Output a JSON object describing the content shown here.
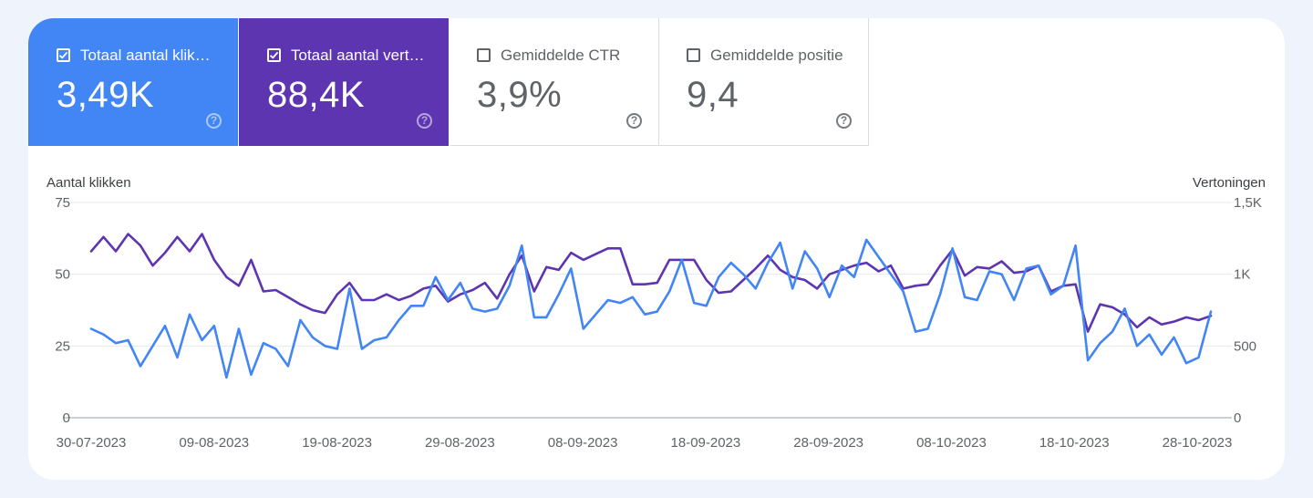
{
  "metrics": {
    "clicks": {
      "label": "Totaal aantal klik…",
      "value": "3,49K",
      "checked": true,
      "color": "#4285f4"
    },
    "impressions": {
      "label": "Totaal aantal vert…",
      "value": "88,4K",
      "checked": true,
      "color": "#5e35b1"
    },
    "ctr": {
      "label": "Gemiddelde CTR",
      "value": "3,9%",
      "checked": false
    },
    "position": {
      "label": "Gemiddelde positie",
      "value": "9,4",
      "checked": false
    }
  },
  "chart_data": {
    "type": "line",
    "left_axis": {
      "title": "Aantal klikken",
      "ticks": [
        "0",
        "25",
        "50",
        "75"
      ],
      "ylim": [
        0,
        75
      ]
    },
    "right_axis": {
      "title": "Vertoningen",
      "ticks": [
        "0",
        "500",
        "1K",
        "1,5K"
      ],
      "ylim": [
        0,
        1500
      ]
    },
    "x_ticks": [
      "30-07-2023",
      "09-08-2023",
      "19-08-2023",
      "29-08-2023",
      "08-09-2023",
      "18-09-2023",
      "28-09-2023",
      "08-10-2023",
      "18-10-2023",
      "28-10-2023"
    ],
    "grid": true,
    "series": [
      {
        "key": "clicks",
        "axis": "left",
        "color": "#4285f4",
        "values": [
          31,
          29,
          26,
          27,
          18,
          25,
          32,
          21,
          36,
          27,
          32,
          14,
          31,
          15,
          26,
          24,
          18,
          34,
          28,
          25,
          24,
          45,
          24,
          27,
          28,
          34,
          39,
          39,
          49,
          41,
          47,
          38,
          37,
          38,
          46,
          60,
          35,
          35,
          43,
          52,
          31,
          36,
          41,
          40,
          42,
          36,
          37,
          44,
          55,
          40,
          39,
          49,
          54,
          50,
          45,
          54,
          61,
          45,
          58,
          52,
          42,
          53,
          49,
          62,
          56,
          50,
          44,
          30,
          31,
          43,
          59,
          42,
          41,
          51,
          50,
          41,
          52,
          53,
          43,
          46,
          60,
          20,
          26,
          30,
          38,
          25,
          29,
          22,
          28,
          19,
          21,
          37
        ]
      },
      {
        "key": "impressions",
        "axis": "right",
        "color": "#5e35b1",
        "values": [
          1160,
          1260,
          1160,
          1280,
          1200,
          1060,
          1150,
          1260,
          1160,
          1280,
          1100,
          980,
          920,
          1100,
          880,
          890,
          840,
          790,
          750,
          730,
          860,
          940,
          820,
          820,
          860,
          820,
          850,
          900,
          920,
          810,
          860,
          890,
          940,
          830,
          1000,
          1130,
          880,
          1050,
          1030,
          1150,
          1100,
          1140,
          1180,
          1180,
          930,
          930,
          940,
          1100,
          1100,
          1100,
          960,
          870,
          880,
          960,
          1040,
          1130,
          1030,
          980,
          960,
          900,
          1000,
          1030,
          1060,
          1080,
          1020,
          1060,
          900,
          920,
          930,
          1060,
          1170,
          990,
          1050,
          1040,
          1090,
          1010,
          1020,
          1060,
          880,
          920,
          930,
          600,
          790,
          770,
          720,
          630,
          700,
          650,
          670,
          700,
          680,
          710
        ]
      }
    ]
  }
}
